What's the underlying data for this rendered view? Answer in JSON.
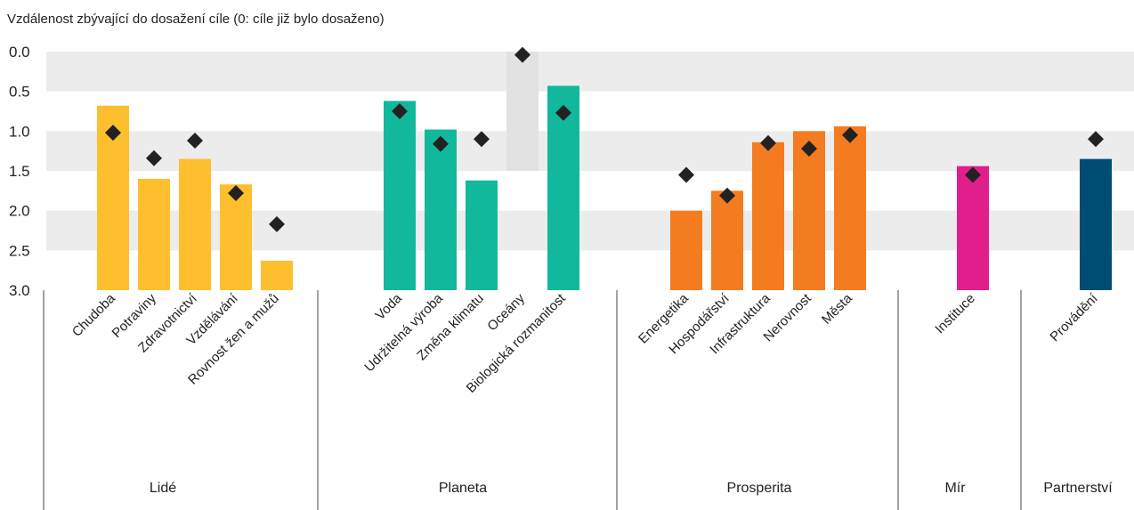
{
  "chart_data": {
    "type": "bar",
    "title": "Vzdálenost zbývající do dosažení cíle (0: cíle již bylo dosaženo)",
    "ylim": [
      0,
      3
    ],
    "y_inverted": true,
    "y_ticks": [
      "0.0",
      "0.5",
      "1.0",
      "1.5",
      "2.0",
      "2.5",
      "3.0"
    ],
    "y_tick_values": [
      0,
      0.5,
      1,
      1.5,
      2,
      2.5,
      3
    ],
    "grid": "alternating horizontal bands",
    "groups": [
      {
        "name": "Lidé",
        "color": "#FDBF2D",
        "categories": [
          "Chudoba",
          "Potraviny",
          "Zdravotnictví",
          "Vzdělávání",
          "Rovnost žen a mužů"
        ],
        "values": [
          0.68,
          1.6,
          1.35,
          1.67,
          2.63
        ],
        "markers": [
          1.02,
          1.34,
          1.12,
          1.78,
          2.17
        ]
      },
      {
        "name": "Planeta",
        "color": "#12B89C",
        "categories": [
          "Voda",
          "Udržitelná výroba",
          "Změna klimatu",
          "Oceány",
          "Biologická rozmanitost"
        ],
        "values": [
          0.62,
          0.98,
          1.62,
          null,
          0.43
        ],
        "markers": [
          0.75,
          1.16,
          1.1,
          0.04,
          0.77
        ]
      },
      {
        "name": "Prosperita",
        "color": "#F47B20",
        "categories": [
          "Energetika",
          "Hospodářství",
          "Infrastruktura",
          "Nerovnost",
          "Města"
        ],
        "values": [
          2.0,
          1.75,
          1.14,
          1.0,
          0.94
        ],
        "markers": [
          1.55,
          1.81,
          1.15,
          1.22,
          1.05
        ]
      },
      {
        "name": "Mír",
        "color": "#E01E8C",
        "categories": [
          "Instituce"
        ],
        "values": [
          1.44
        ],
        "markers": [
          1.55
        ]
      },
      {
        "name": "Partnerství",
        "color": "#004D73",
        "categories": [
          "Provádění"
        ],
        "values": [
          1.35
        ],
        "markers": [
          1.1
        ]
      }
    ],
    "highlighted_category": "Oceány",
    "marker_color": "#222222"
  }
}
